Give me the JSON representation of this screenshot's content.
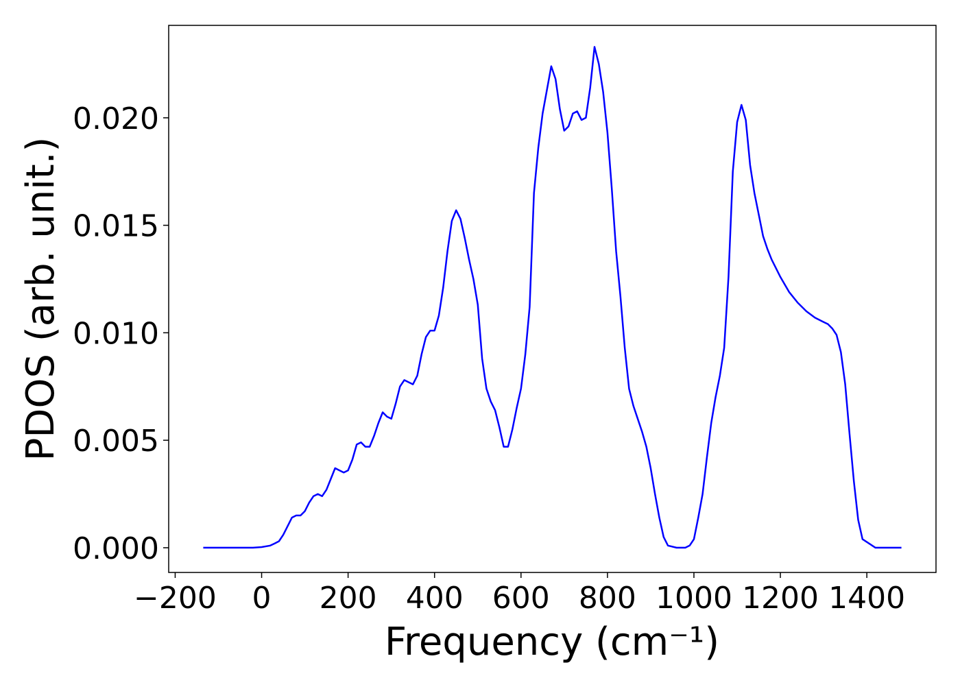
{
  "chart_data": {
    "type": "line",
    "title": "",
    "xlabel": "Frequency (cm⁻¹)",
    "ylabel": "PDOS (arb. unit.)",
    "xlim": [
      -215,
      1560
    ],
    "ylim": [
      -0.00115,
      0.0243
    ],
    "xticks": [
      -200,
      0,
      200,
      400,
      600,
      800,
      1000,
      1200,
      1400
    ],
    "yticks": [
      0.0,
      0.005,
      0.01,
      0.015,
      0.02
    ],
    "xtick_labels": [
      "−200",
      "0",
      "200",
      "400",
      "600",
      "800",
      "1000",
      "1200",
      "1400"
    ],
    "ytick_labels": [
      "0.000",
      "0.005",
      "0.010",
      "0.015",
      "0.020"
    ],
    "grid": false,
    "legend": "none",
    "series": [
      {
        "color": "#0000ff",
        "x": [
          -135,
          -100,
          -60,
          -20,
          0,
          20,
          30,
          40,
          50,
          60,
          70,
          80,
          90,
          100,
          110,
          120,
          130,
          140,
          150,
          160,
          170,
          180,
          190,
          200,
          210,
          220,
          230,
          240,
          250,
          260,
          270,
          280,
          290,
          300,
          310,
          320,
          330,
          340,
          350,
          360,
          370,
          380,
          390,
          400,
          410,
          420,
          430,
          440,
          450,
          460,
          470,
          480,
          490,
          500,
          510,
          520,
          530,
          540,
          550,
          560,
          570,
          580,
          590,
          600,
          610,
          620,
          630,
          640,
          650,
          660,
          670,
          680,
          690,
          700,
          710,
          720,
          730,
          740,
          750,
          760,
          770,
          780,
          790,
          800,
          810,
          820,
          830,
          840,
          850,
          860,
          870,
          880,
          890,
          900,
          910,
          920,
          930,
          940,
          960,
          980,
          990,
          1000,
          1010,
          1020,
          1030,
          1040,
          1050,
          1060,
          1070,
          1080,
          1090,
          1100,
          1110,
          1120,
          1130,
          1140,
          1150,
          1160,
          1170,
          1180,
          1190,
          1200,
          1220,
          1240,
          1260,
          1280,
          1300,
          1310,
          1320,
          1330,
          1340,
          1350,
          1360,
          1370,
          1380,
          1390,
          1420,
          1480
        ],
        "y": [
          0.0,
          0.0,
          0.0,
          0.0,
          3e-05,
          0.0001,
          0.0002,
          0.0003,
          0.0006,
          0.001,
          0.0014,
          0.0015,
          0.0015,
          0.0017,
          0.0021,
          0.0024,
          0.0025,
          0.0024,
          0.0027,
          0.0032,
          0.0037,
          0.0036,
          0.0035,
          0.0036,
          0.0041,
          0.0048,
          0.0049,
          0.0047,
          0.0047,
          0.0052,
          0.0058,
          0.0063,
          0.0061,
          0.006,
          0.0067,
          0.0075,
          0.0078,
          0.0077,
          0.0076,
          0.008,
          0.009,
          0.0098,
          0.0101,
          0.0101,
          0.0108,
          0.0121,
          0.0138,
          0.0152,
          0.0157,
          0.0153,
          0.0144,
          0.0134,
          0.0125,
          0.0113,
          0.0088,
          0.0074,
          0.0068,
          0.0064,
          0.0056,
          0.0047,
          0.0047,
          0.0055,
          0.0065,
          0.0074,
          0.009,
          0.0112,
          0.0165,
          0.0186,
          0.0202,
          0.0213,
          0.0224,
          0.0218,
          0.0204,
          0.0194,
          0.0196,
          0.0202,
          0.0203,
          0.0199,
          0.02,
          0.0214,
          0.0233,
          0.0225,
          0.0212,
          0.0193,
          0.0167,
          0.0138,
          0.0117,
          0.0093,
          0.0074,
          0.0066,
          0.006,
          0.0054,
          0.0047,
          0.0037,
          0.0025,
          0.0014,
          0.0005,
          0.0001,
          0.0,
          0.0,
          0.0001,
          0.0004,
          0.0014,
          0.0025,
          0.0042,
          0.0058,
          0.007,
          0.008,
          0.0093,
          0.0126,
          0.0175,
          0.0198,
          0.0206,
          0.0199,
          0.0178,
          0.0165,
          0.0155,
          0.0145,
          0.0139,
          0.0134,
          0.013,
          0.0126,
          0.0119,
          0.0114,
          0.011,
          0.0107,
          0.0105,
          0.0104,
          0.0102,
          0.0099,
          0.0091,
          0.0076,
          0.0053,
          0.0031,
          0.0013,
          0.0004,
          0.0,
          0.0
        ]
      }
    ]
  }
}
